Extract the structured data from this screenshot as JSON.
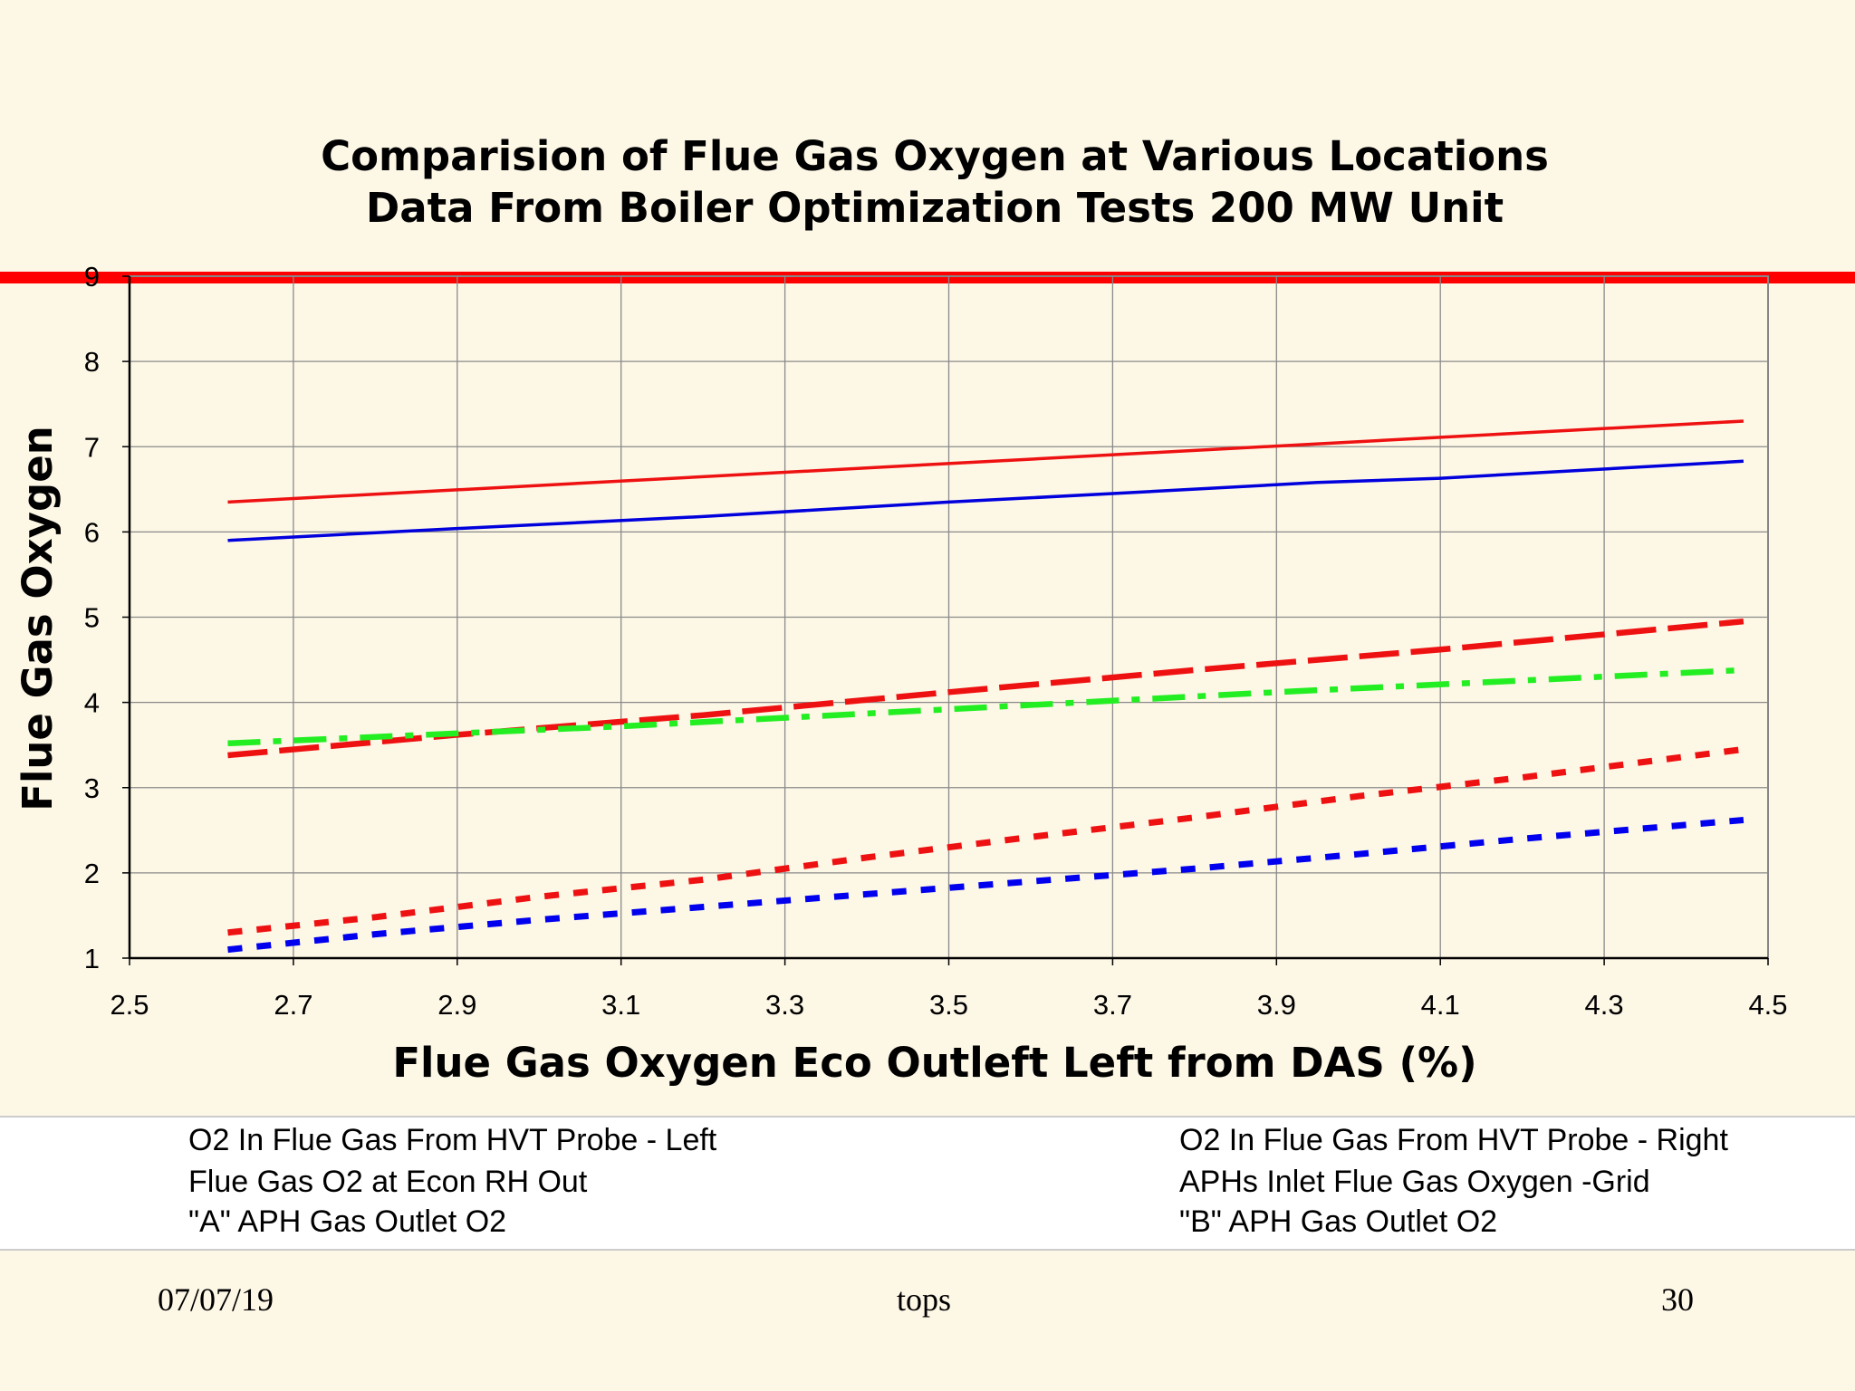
{
  "slide": {
    "background": "#fdf7e6",
    "accent_bar_color": "#ff0000",
    "footer": {
      "date": "07/07/19",
      "center": "tops",
      "page": "30"
    }
  },
  "chart_data": {
    "type": "line",
    "title": [
      "Comparision of Flue Gas Oxygen at Various Locations",
      "Data From Boiler Optimization Tests 200 MW Unit"
    ],
    "xlabel": "Flue Gas Oxygen Eco Outleft Left from DAS  (%)",
    "ylabel": "Flue Gas Oxygen",
    "xlim": [
      2.5,
      4.5
    ],
    "ylim": [
      1,
      9
    ],
    "xticks": [
      "2.5",
      "2.7",
      "2.9",
      "3.1",
      "3.3",
      "3.5",
      "3.7",
      "3.9",
      "4.1",
      "4.3",
      "4.5"
    ],
    "yticks": [
      "1",
      "2",
      "3",
      "4",
      "5",
      "6",
      "7",
      "8",
      "9"
    ],
    "grid": true,
    "legend_position": "bottom",
    "series": [
      {
        "name": "O2 In Flue Gas From HVT Probe  - Left",
        "color": "#0000dd",
        "style": "solid",
        "x": [
          2.62,
          2.9,
          3.2,
          3.5,
          3.7,
          3.95,
          4.1,
          4.47
        ],
        "y": [
          5.9,
          6.04,
          6.18,
          6.35,
          6.45,
          6.58,
          6.63,
          6.83
        ]
      },
      {
        "name": "O2 In Flue Gas From HVT Probe  - Right",
        "color": "#ee1111",
        "style": "solid",
        "x": [
          2.62,
          4.47
        ],
        "y": [
          6.35,
          7.3
        ]
      },
      {
        "name": "Flue Gas O2 at Econ RH Out",
        "color": "#ee1111",
        "style": "dash",
        "x": [
          2.62,
          2.9,
          3.2,
          3.5,
          3.8,
          4.1,
          4.47
        ],
        "y": [
          3.38,
          3.62,
          3.85,
          4.12,
          4.38,
          4.62,
          4.95
        ]
      },
      {
        "name": "APHs Inlet Flue Gas Oxygen -Grid",
        "color": "#22ee22",
        "style": "dashdot",
        "x": [
          2.62,
          3.1,
          3.5,
          3.9,
          4.47
        ],
        "y": [
          3.52,
          3.72,
          3.92,
          4.12,
          4.38
        ]
      },
      {
        "name": "\"A\" APH Gas Outlet O2",
        "color": "#ee1111",
        "style": "dot",
        "x": [
          2.62,
          2.8,
          3.0,
          3.2,
          3.4,
          3.6,
          3.8,
          4.0,
          4.2,
          4.47
        ],
        "y": [
          1.3,
          1.48,
          1.72,
          1.92,
          2.18,
          2.42,
          2.65,
          2.9,
          3.12,
          3.45
        ]
      },
      {
        "name": "\"B\" APH Gas Outlet O2",
        "color": "#0000ee",
        "style": "dot",
        "x": [
          2.62,
          2.8,
          3.0,
          3.2,
          3.4,
          3.6,
          3.8,
          4.0,
          4.2,
          4.47
        ],
        "y": [
          1.1,
          1.28,
          1.45,
          1.6,
          1.75,
          1.9,
          2.05,
          2.22,
          2.4,
          2.62
        ]
      }
    ]
  }
}
